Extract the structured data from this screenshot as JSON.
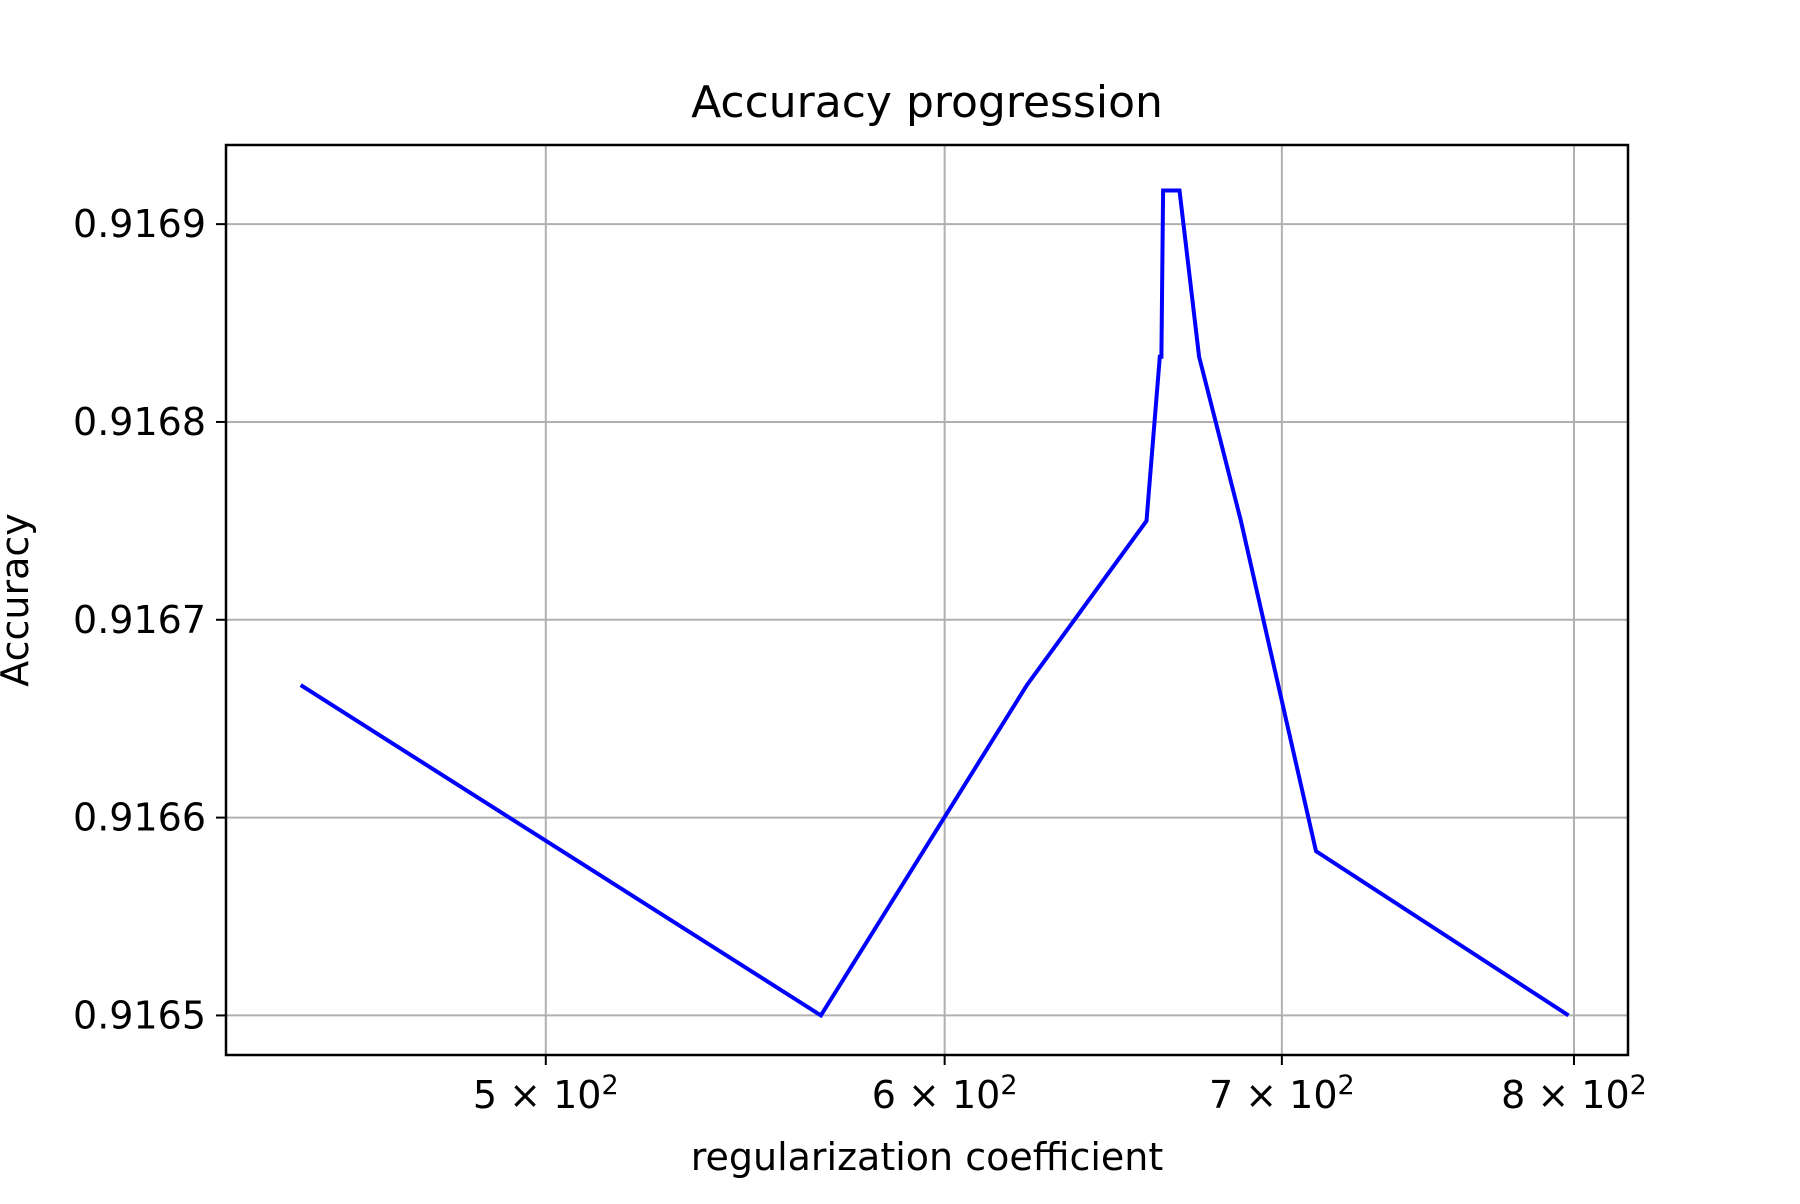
{
  "chart_data": {
    "type": "line",
    "title": "Accuracy progression",
    "xlabel": "regularization coefficient",
    "ylabel": "Accuracy",
    "x_scale": "log",
    "xlim": [
      432,
      820
    ],
    "ylim": [
      0.91648,
      0.91694
    ],
    "grid": true,
    "x_ticks": [
      {
        "value": 500,
        "mantissa": "5",
        "base": "10",
        "exponent": "2"
      },
      {
        "value": 600,
        "mantissa": "6",
        "base": "10",
        "exponent": "2"
      },
      {
        "value": 700,
        "mantissa": "7",
        "base": "10",
        "exponent": "2"
      },
      {
        "value": 800,
        "mantissa": "8",
        "base": "10",
        "exponent": "2"
      }
    ],
    "y_ticks": [
      {
        "value": 0.9165,
        "label": "0.9165"
      },
      {
        "value": 0.9166,
        "label": "0.9166"
      },
      {
        "value": 0.9167,
        "label": "0.9167"
      },
      {
        "value": 0.9168,
        "label": "0.9168"
      },
      {
        "value": 0.9169,
        "label": "0.9169"
      }
    ],
    "series": [
      {
        "color": "#0000ff",
        "x": [
          447,
          567,
          623,
          658,
          662,
          662.5,
          663,
          668,
          674,
          687,
          711,
          798
        ],
        "y": [
          0.916667,
          0.9165,
          0.916667,
          0.91675,
          0.916833,
          0.916833,
          0.916917,
          0.916917,
          0.916833,
          0.91675,
          0.916583,
          0.9165
        ]
      }
    ]
  }
}
